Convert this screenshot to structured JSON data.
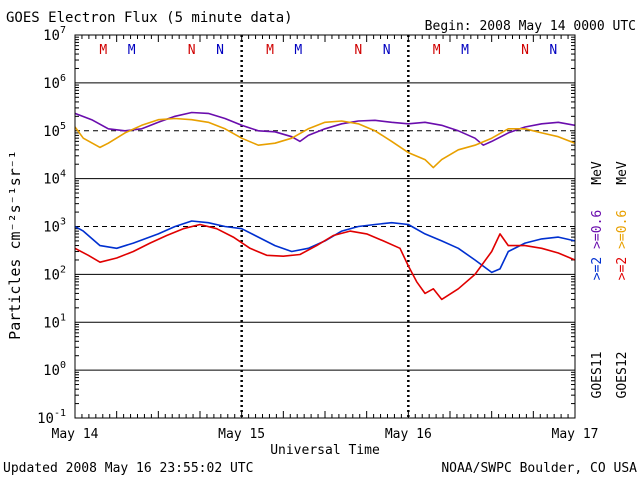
{
  "chart_data": {
    "type": "line",
    "title": "GOES Electron Flux (5 minute data)",
    "begin_label": "Begin: 2008 May 14 0000 UTC",
    "ylabel": "Particles cm⁻²s⁻¹sr⁻¹",
    "xlabel": "Universal Time",
    "footer_left": "Updated 2008 May 16 23:55:02 UTC",
    "footer_right": "NOAA/SWPC Boulder, CO USA",
    "y_scale": "log",
    "ylim": [
      0.1,
      10000000
    ],
    "y_ticks": [
      {
        "value": 10000000,
        "base": "10",
        "exp": "7"
      },
      {
        "value": 1000000,
        "base": "10",
        "exp": "6"
      },
      {
        "value": 100000,
        "base": "10",
        "exp": "5"
      },
      {
        "value": 10000,
        "base": "10",
        "exp": "4"
      },
      {
        "value": 1000,
        "base": "10",
        "exp": "3"
      },
      {
        "value": 100,
        "base": "10",
        "exp": "2"
      },
      {
        "value": 10,
        "base": "10",
        "exp": "1"
      },
      {
        "value": 1,
        "base": "10",
        "exp": "0"
      },
      {
        "value": 0.1,
        "base": "10",
        "exp": "-1"
      }
    ],
    "xlim": [
      0,
      3
    ],
    "x_unit": "days since 2008 May 14 0000 UTC",
    "x_ticks": [
      {
        "value": 0,
        "label": "May 14"
      },
      {
        "value": 1,
        "label": "May 15"
      },
      {
        "value": 2,
        "label": "May 16"
      },
      {
        "value": 3,
        "label": "May 17"
      }
    ],
    "gridlines_solid": [
      1000000,
      10000,
      100,
      10,
      1
    ],
    "thresholds_dashed": [
      100000,
      1000
    ],
    "markers": [
      {
        "x": 0.17,
        "label": "M",
        "color": "#d00000"
      },
      {
        "x": 0.34,
        "label": "M",
        "color": "#0000c0"
      },
      {
        "x": 0.7,
        "label": "N",
        "color": "#d00000"
      },
      {
        "x": 0.87,
        "label": "N",
        "color": "#0000c0"
      },
      {
        "x": 1.17,
        "label": "M",
        "color": "#d00000"
      },
      {
        "x": 1.34,
        "label": "M",
        "color": "#0000c0"
      },
      {
        "x": 1.7,
        "label": "N",
        "color": "#d00000"
      },
      {
        "x": 1.87,
        "label": "N",
        "color": "#0000c0"
      },
      {
        "x": 2.17,
        "label": "M",
        "color": "#d00000"
      },
      {
        "x": 2.34,
        "label": "M",
        "color": "#0000c0"
      },
      {
        "x": 2.7,
        "label": "N",
        "color": "#d00000"
      },
      {
        "x": 2.87,
        "label": "N",
        "color": "#0000c0"
      }
    ],
    "legend_goes11": "GOES11",
    "legend_goes12": "GOES12",
    "legend_unit": "MeV",
    "legend_label_2": ">=2",
    "legend_label_06": ">=0.6",
    "series": [
      {
        "name": ">=0.6 MeV GOES11",
        "color": "#6a0dad",
        "x": [
          0,
          0.1,
          0.2,
          0.3,
          0.4,
          0.5,
          0.6,
          0.7,
          0.8,
          0.9,
          1.0,
          1.1,
          1.2,
          1.3,
          1.35,
          1.4,
          1.5,
          1.6,
          1.7,
          1.8,
          1.9,
          2.0,
          2.1,
          2.2,
          2.3,
          2.4,
          2.45,
          2.5,
          2.6,
          2.7,
          2.8,
          2.9,
          3.0
        ],
        "y": [
          230000,
          170000,
          110000,
          100000,
          110000,
          150000,
          200000,
          240000,
          230000,
          180000,
          130000,
          100000,
          95000,
          75000,
          60000,
          80000,
          110000,
          140000,
          160000,
          165000,
          150000,
          140000,
          150000,
          130000,
          100000,
          70000,
          50000,
          60000,
          90000,
          120000,
          140000,
          150000,
          130000
        ]
      },
      {
        "name": ">=0.6 MeV GOES12",
        "color": "#e8a000",
        "x": [
          0,
          0.05,
          0.15,
          0.2,
          0.3,
          0.4,
          0.5,
          0.6,
          0.7,
          0.8,
          0.9,
          1.0,
          1.1,
          1.2,
          1.3,
          1.4,
          1.5,
          1.6,
          1.7,
          1.8,
          1.9,
          2.0,
          2.1,
          2.15,
          2.2,
          2.3,
          2.4,
          2.5,
          2.6,
          2.7,
          2.8,
          2.9,
          3.0
        ],
        "y": [
          120000,
          70000,
          45000,
          55000,
          90000,
          130000,
          170000,
          180000,
          170000,
          150000,
          110000,
          70000,
          50000,
          55000,
          70000,
          110000,
          150000,
          160000,
          140000,
          100000,
          60000,
          35000,
          25000,
          17000,
          25000,
          40000,
          50000,
          70000,
          110000,
          110000,
          90000,
          75000,
          55000
        ]
      },
      {
        "name": ">=2 MeV GOES11",
        "color": "#0030d0",
        "x": [
          0,
          0.05,
          0.15,
          0.25,
          0.35,
          0.5,
          0.6,
          0.7,
          0.8,
          0.9,
          1.0,
          1.1,
          1.2,
          1.3,
          1.4,
          1.5,
          1.6,
          1.7,
          1.8,
          1.9,
          2.0,
          2.1,
          2.2,
          2.3,
          2.4,
          2.5,
          2.55,
          2.6,
          2.7,
          2.8,
          2.9,
          3.0
        ],
        "y": [
          1000,
          800,
          400,
          350,
          450,
          700,
          1000,
          1300,
          1200,
          1000,
          900,
          600,
          400,
          300,
          350,
          500,
          800,
          1000,
          1100,
          1200,
          1100,
          700,
          500,
          350,
          200,
          110,
          130,
          300,
          450,
          550,
          600,
          500
        ]
      },
      {
        "name": ">=2 MeV GOES12",
        "color": "#e00000",
        "x": [
          0,
          0.08,
          0.15,
          0.25,
          0.35,
          0.45,
          0.55,
          0.65,
          0.75,
          0.85,
          0.95,
          1.05,
          1.15,
          1.25,
          1.35,
          1.45,
          1.55,
          1.65,
          1.75,
          1.85,
          1.95,
          2.0,
          2.05,
          2.1,
          2.15,
          2.2,
          2.3,
          2.4,
          2.5,
          2.55,
          2.6,
          2.7,
          2.8,
          2.9,
          3.0
        ],
        "y": [
          350,
          250,
          180,
          220,
          300,
          450,
          650,
          900,
          1100,
          900,
          600,
          350,
          250,
          240,
          260,
          400,
          650,
          800,
          700,
          500,
          350,
          150,
          70,
          40,
          50,
          30,
          50,
          100,
          300,
          700,
          400,
          400,
          350,
          280,
          200
        ]
      }
    ]
  }
}
